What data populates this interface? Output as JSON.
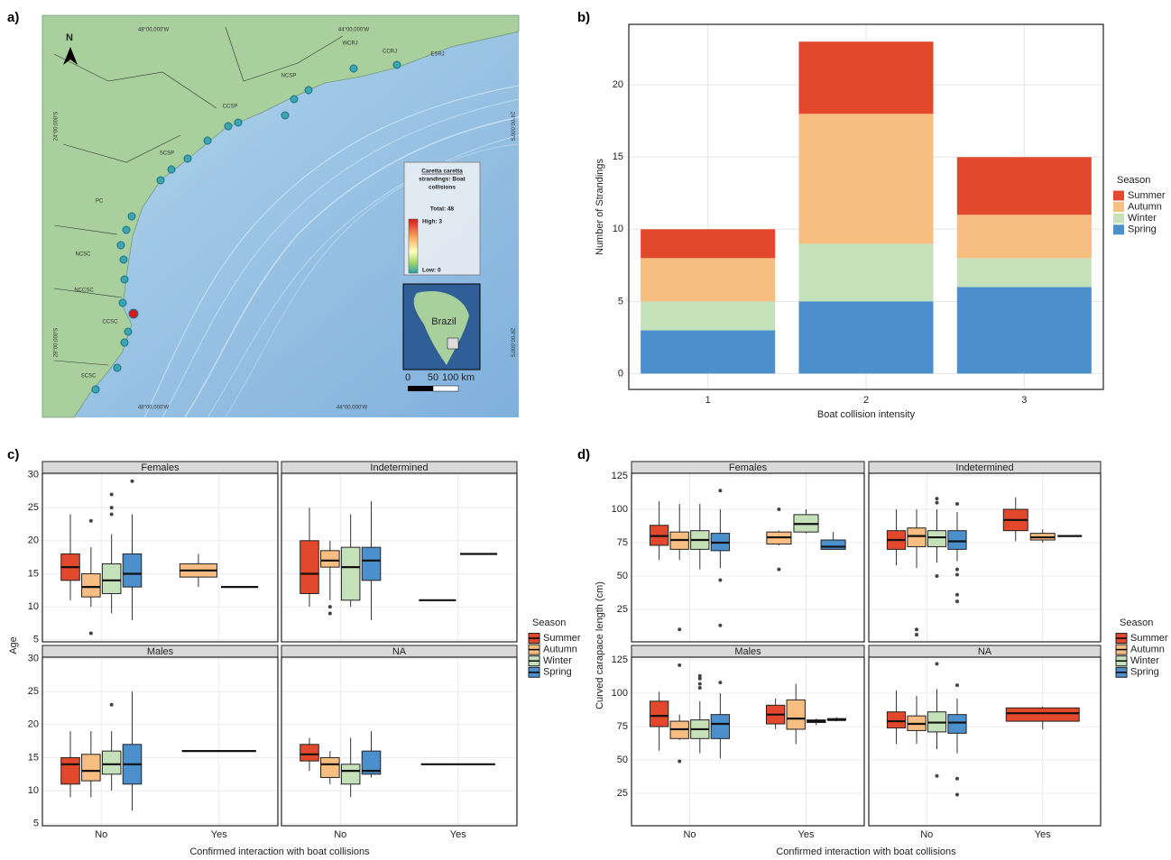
{
  "map": {
    "panel_label": "a)",
    "north": "N",
    "lon_labels": [
      "48°00.000'W",
      "44°00.000'W"
    ],
    "lat_labels": [
      "24°00.000'S",
      "28°00.000'S"
    ],
    "regions": [
      "SCSP",
      "CCSP",
      "NCSP",
      "WCRJ",
      "CCRJ",
      "ESRJ",
      "PC",
      "NCSC",
      "NCCSC",
      "CCSC",
      "SCSC"
    ],
    "legend_title": [
      "Caretta caretta",
      "strandings: Boat",
      "collisions"
    ],
    "total": "Total: 48",
    "high": "High: 3",
    "low": "Low: 0",
    "inset_label": "Brazil",
    "scale_labels": [
      "0",
      "50",
      "100 km"
    ]
  },
  "chart_data": [
    {
      "type": "stacked_bar",
      "panel_label": "b)",
      "x_label": "Boat collision intensity",
      "y_label": "Number of Strandings",
      "legend_title": "Season",
      "categories": [
        "1",
        "2",
        "3"
      ],
      "series": [
        {
          "name": "Summer",
          "color": "#e2492c",
          "values": [
            2,
            5,
            4
          ]
        },
        {
          "name": "Autumn",
          "color": "#f8bd80",
          "values": [
            3,
            9,
            3
          ]
        },
        {
          "name": "Winter",
          "color": "#c5e1b9",
          "values": [
            2,
            4,
            2
          ]
        },
        {
          "name": "Spring",
          "color": "#4b8fcc",
          "values": [
            3,
            5,
            6
          ]
        }
      ],
      "ylim": [
        -1.1,
        24.2
      ],
      "yticks": [
        0,
        5,
        10,
        15,
        20
      ],
      "grid": true
    },
    {
      "type": "boxplot",
      "panel_label": "c)",
      "x_label": "Confirmed interaction with boat collisions",
      "y_label": "Age",
      "legend_title": "Season",
      "categories": [
        "No",
        "Yes"
      ],
      "series": [
        {
          "name": "Summer",
          "color": "#e2492c"
        },
        {
          "name": "Autumn",
          "color": "#f8bd80"
        },
        {
          "name": "Winter",
          "color": "#c5e1b9"
        },
        {
          "name": "Spring",
          "color": "#4b8fcc"
        }
      ],
      "ylim": [
        4.7,
        30.2
      ],
      "yticks": [
        5,
        10,
        15,
        20,
        25,
        30
      ],
      "grid": true,
      "facets": [
        {
          "title": "Females",
          "groups": [
            [
              {
                "min": 11,
                "q1": 14,
                "median": 16,
                "q3": 18,
                "max": 24,
                "outliers": []
              },
              {
                "min": 10,
                "q1": 11.5,
                "median": 13,
                "q3": 15,
                "max": 19,
                "outliers": [
                  6,
                  23
                ]
              },
              {
                "min": 9,
                "q1": 12,
                "median": 14,
                "q3": 16.5,
                "max": 21,
                "outliers": [
                  24,
                  25,
                  27
                ]
              },
              {
                "min": 8,
                "q1": 13,
                "median": 15,
                "q3": 18,
                "max": 24,
                "outliers": [
                  29
                ]
              }
            ],
            [
              null,
              {
                "min": 13,
                "q1": 14.5,
                "median": 15.5,
                "q3": 16.5,
                "max": 18,
                "outliers": []
              },
              {
                "min": 13,
                "q1": 13,
                "median": 13,
                "q3": 13,
                "max": 13,
                "outliers": []
              },
              null
            ]
          ]
        },
        {
          "title": "Indetermined",
          "groups": [
            [
              {
                "min": 10,
                "q1": 12,
                "median": 15,
                "q3": 20,
                "max": 25,
                "outliers": []
              },
              {
                "min": 11,
                "q1": 16,
                "median": 17,
                "q3": 18.5,
                "max": 20,
                "outliers": [
                  9,
                  10
                ]
              },
              {
                "min": 10,
                "q1": 11,
                "median": 16,
                "q3": 19,
                "max": 24,
                "outliers": []
              },
              {
                "min": 8,
                "q1": 14,
                "median": 17,
                "q3": 19,
                "max": 26,
                "outliers": []
              }
            ],
            [
              null,
              {
                "min": 11,
                "q1": 11,
                "median": 11,
                "q3": 11,
                "max": 11,
                "outliers": []
              },
              null,
              {
                "min": 18,
                "q1": 18,
                "median": 18,
                "q3": 18,
                "max": 18,
                "outliers": []
              }
            ]
          ]
        },
        {
          "title": "Males",
          "groups": [
            [
              {
                "min": 9,
                "q1": 11,
                "median": 14,
                "q3": 15,
                "max": 19,
                "outliers": []
              },
              {
                "min": 9,
                "q1": 11.5,
                "median": 13,
                "q3": 15.5,
                "max": 19,
                "outliers": []
              },
              {
                "min": 10,
                "q1": 12.5,
                "median": 14,
                "q3": 16,
                "max": 19,
                "outliers": [
                  23
                ]
              },
              {
                "min": 7,
                "q1": 11,
                "median": 14,
                "q3": 17,
                "max": 25,
                "outliers": []
              }
            ],
            [
              null,
              null,
              {
                "min": 16,
                "q1": 16,
                "median": 16,
                "q3": 16,
                "max": 16,
                "outliers": []
              },
              null
            ]
          ]
        },
        {
          "title": "NA",
          "groups": [
            [
              {
                "min": 13,
                "q1": 14.5,
                "median": 15.5,
                "q3": 17,
                "max": 18,
                "outliers": []
              },
              {
                "min": 11,
                "q1": 12,
                "median": 14,
                "q3": 15,
                "max": 16,
                "outliers": []
              },
              {
                "min": 9,
                "q1": 11,
                "median": 13,
                "q3": 14,
                "max": 18,
                "outliers": []
              },
              {
                "min": 12,
                "q1": 12.5,
                "median": 13,
                "q3": 16,
                "max": 19,
                "outliers": []
              }
            ],
            [
              null,
              null,
              {
                "min": 14,
                "q1": 14,
                "median": 14,
                "q3": 14,
                "max": 14,
                "outliers": []
              },
              null
            ]
          ]
        }
      ]
    },
    {
      "type": "boxplot",
      "panel_label": "d)",
      "x_label": "Confirmed interaction with boat collisions",
      "y_label": "Curved carapace length (cm)",
      "legend_title": "Season",
      "categories": [
        "No",
        "Yes"
      ],
      "series": [
        {
          "name": "Summer",
          "color": "#e2492c"
        },
        {
          "name": "Autumn",
          "color": "#f8bd80"
        },
        {
          "name": "Winter",
          "color": "#c5e1b9"
        },
        {
          "name": "Spring",
          "color": "#4b8fcc"
        }
      ],
      "ylim": [
        0.7,
        127
      ],
      "yticks": [
        25,
        50,
        75,
        100,
        125
      ],
      "grid": true,
      "facets": [
        {
          "title": "Females",
          "groups": [
            [
              {
                "min": 62,
                "q1": 73,
                "median": 80,
                "q3": 88,
                "max": 106,
                "outliers": []
              },
              {
                "min": 62,
                "q1": 70,
                "median": 77,
                "q3": 83,
                "max": 104,
                "outliers": [
                  10
                ]
              },
              {
                "min": 55,
                "q1": 70,
                "median": 77,
                "q3": 84,
                "max": 104,
                "outliers": []
              },
              {
                "min": 56,
                "q1": 69,
                "median": 75,
                "q3": 82,
                "max": 100,
                "outliers": [
                  114,
                  47,
                  13
                ]
              }
            ],
            [
              null,
              {
                "min": 73,
                "q1": 74,
                "median": 79,
                "q3": 83,
                "max": 84,
                "outliers": [
                  55,
                  100
                ]
              },
              {
                "min": 82,
                "q1": 83,
                "median": 89,
                "q3": 96,
                "max": 100,
                "outliers": []
              },
              {
                "min": 70,
                "q1": 70,
                "median": 72,
                "q3": 77,
                "max": 83,
                "outliers": []
              }
            ]
          ]
        },
        {
          "title": "Indetermined",
          "groups": [
            [
              {
                "min": 58,
                "q1": 70,
                "median": 77,
                "q3": 84,
                "max": 100,
                "outliers": []
              },
              {
                "min": 56,
                "q1": 72,
                "median": 80,
                "q3": 86,
                "max": 100,
                "outliers": [
                  10,
                  6
                ]
              },
              {
                "min": 60,
                "q1": 72,
                "median": 79,
                "q3": 84,
                "max": 100,
                "outliers": [
                  50,
                  105,
                  108
                ]
              },
              {
                "min": 61,
                "q1": 70,
                "median": 76,
                "q3": 84,
                "max": 98,
                "outliers": [
                  104,
                  55,
                  51,
                  36,
                  31
                ]
              }
            ],
            [
              {
                "min": 76,
                "q1": 84,
                "median": 92,
                "q3": 100,
                "max": 109,
                "outliers": []
              },
              {
                "min": 75,
                "q1": 77,
                "median": 79,
                "q3": 82,
                "max": 85,
                "outliers": []
              },
              null,
              {
                "min": 80,
                "q1": 80,
                "median": 80,
                "q3": 80,
                "max": 80,
                "outliers": []
              }
            ]
          ]
        },
        {
          "title": "Males",
          "groups": [
            [
              {
                "min": 57,
                "q1": 75,
                "median": 83,
                "q3": 94,
                "max": 101,
                "outliers": []
              },
              {
                "min": 65,
                "q1": 66,
                "median": 73,
                "q3": 79,
                "max": 84,
                "outliers": [
                  121,
                  49
                ]
              },
              {
                "min": 55,
                "q1": 66,
                "median": 73,
                "q3": 80,
                "max": 94,
                "outliers": [
                  104,
                  107,
                  111,
                  113
                ]
              },
              {
                "min": 51,
                "q1": 66,
                "median": 77,
                "q3": 84,
                "max": 100,
                "outliers": [
                  108
                ]
              }
            ],
            [
              {
                "min": 73,
                "q1": 77,
                "median": 84,
                "q3": 91,
                "max": 96,
                "outliers": []
              },
              {
                "min": 62,
                "q1": 73,
                "median": 81,
                "q3": 95,
                "max": 107,
                "outliers": []
              },
              {
                "min": 76,
                "q1": 78,
                "median": 79,
                "q3": 80,
                "max": 81,
                "outliers": []
              },
              {
                "min": 79,
                "q1": 80,
                "median": 80,
                "q3": 81,
                "max": 82,
                "outliers": []
              }
            ]
          ]
        },
        {
          "title": "NA",
          "groups": [
            [
              {
                "min": 62,
                "q1": 74,
                "median": 79,
                "q3": 86,
                "max": 102,
                "outliers": []
              },
              {
                "min": 62,
                "q1": 72,
                "median": 77,
                "q3": 83,
                "max": 98,
                "outliers": []
              },
              {
                "min": 58,
                "q1": 71,
                "median": 78,
                "q3": 86,
                "max": 103,
                "outliers": [
                  122,
                  38
                ]
              },
              {
                "min": 55,
                "q1": 70,
                "median": 78,
                "q3": 84,
                "max": 96,
                "outliers": [
                  106,
                  36,
                  24
                ]
              }
            ],
            [
              {
                "min": 73,
                "q1": 79,
                "median": 85,
                "q3": 89,
                "max": 90,
                "outliers": []
              },
              null,
              null,
              null
            ]
          ]
        }
      ]
    }
  ]
}
